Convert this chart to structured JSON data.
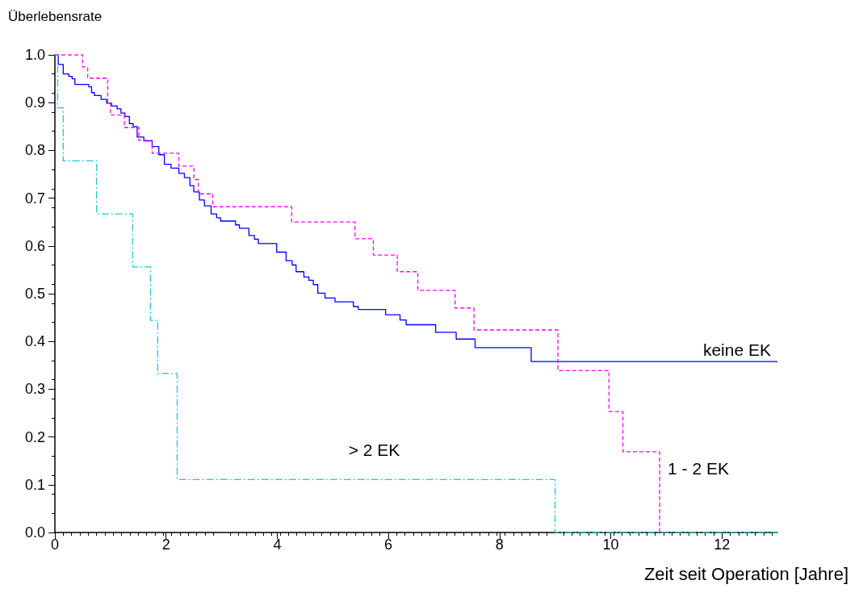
{
  "chart_data": {
    "type": "step",
    "ylabel": "Überlebensrate",
    "xlabel": "Zeit seit Operation [Jahre]",
    "xlim": [
      0,
      13
    ],
    "xticks": [
      0,
      2,
      4,
      6,
      8,
      10,
      12
    ],
    "ylim": [
      0,
      1
    ],
    "yticks": [
      {
        "value": 0,
        "label": "0.0"
      },
      0.1,
      0.2,
      0.3,
      0.4,
      0.5,
      0.6,
      0.7,
      0.8,
      0.9,
      {
        "value": 1,
        "label": "1.0"
      }
    ],
    "grid": false,
    "legend": false,
    "marker": "none",
    "series": [
      {
        "name": "keine EK",
        "color": "#0000ff",
        "line_style": "solid",
        "x": [
          0,
          0.06,
          0.15,
          0.25,
          0.31,
          0.36,
          0.61,
          0.66,
          0.71,
          0.83,
          0.93,
          1.02,
          1.12,
          1.19,
          1.26,
          1.34,
          1.41,
          1.48,
          1.6,
          1.75,
          1.87,
          1.97,
          2.09,
          2.23,
          2.33,
          2.43,
          2.5,
          2.6,
          2.69,
          2.81,
          2.91,
          2.98,
          3.25,
          3.32,
          3.49,
          3.59,
          3.66,
          3.99,
          4.16,
          4.27,
          4.34,
          4.48,
          4.57,
          4.65,
          4.73,
          4.86,
          5.04,
          5.37,
          5.46,
          5.95,
          6.21,
          6.32,
          6.85,
          7.22,
          7.56,
          8.57,
          13
        ],
        "values": [
          1,
          0.98,
          0.96,
          0.955,
          0.95,
          0.938,
          0.933,
          0.921,
          0.915,
          0.907,
          0.899,
          0.893,
          0.887,
          0.878,
          0.871,
          0.856,
          0.85,
          0.828,
          0.82,
          0.808,
          0.791,
          0.771,
          0.763,
          0.752,
          0.743,
          0.726,
          0.713,
          0.696,
          0.684,
          0.667,
          0.659,
          0.652,
          0.644,
          0.637,
          0.622,
          0.614,
          0.605,
          0.587,
          0.569,
          0.56,
          0.546,
          0.535,
          0.528,
          0.519,
          0.501,
          0.491,
          0.483,
          0.473,
          0.467,
          0.456,
          0.445,
          0.435,
          0.419,
          0.405,
          0.387,
          0.358,
          0.358
        ]
      },
      {
        "name": "1 - 2 EK",
        "color": "#ff00ff",
        "line_style": "dashed",
        "x": [
          0,
          0.5,
          0.59,
          0.95,
          1.0,
          1.25,
          1.51,
          1.75,
          2.23,
          2.5,
          2.58,
          2.84,
          4.26,
          5.4,
          5.73,
          6.16,
          6.53,
          7.2,
          7.54,
          9.05,
          9.97,
          10.22,
          10.88
        ],
        "values": [
          1,
          0.975,
          0.951,
          0.899,
          0.874,
          0.848,
          0.821,
          0.794,
          0.767,
          0.739,
          0.709,
          0.682,
          0.65,
          0.615,
          0.581,
          0.546,
          0.507,
          0.47,
          0.424,
          0.339,
          0.253,
          0.169,
          0
        ]
      },
      {
        "name": "> 2 EK",
        "color": "#22c8cc",
        "line_style": "dashdot",
        "x": [
          0,
          0.05,
          0.15,
          0.75,
          1.4,
          1.72,
          1.85,
          2.2,
          9.0,
          13
        ],
        "values": [
          1,
          0.889,
          0.778,
          0.667,
          0.556,
          0.444,
          0.333,
          0.111,
          0,
          0
        ]
      }
    ]
  }
}
